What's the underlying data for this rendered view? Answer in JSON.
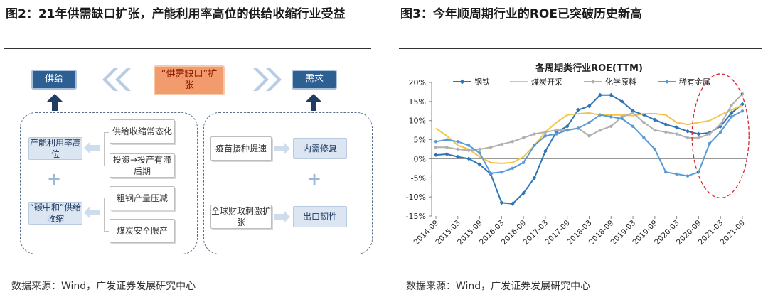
{
  "left_panel": {
    "title": "图2：21年供需缺口扩张，产能利用率高位的供给收缩行业受益",
    "source": "数据来源：Wind，广发证券发展研究中心",
    "diagram": {
      "supply_label": "供给",
      "gap_label": "“供需缺口”扩张",
      "demand_label": "需求",
      "capacity_util": "产能利用率高位",
      "supply_normal": "供给收缩常态化",
      "invest_lag": "投资→投产有滞后期",
      "carbon_neutral": "“碳中和”供给收缩",
      "steel_cut": "粗钢产量压减",
      "coal_limit": "煤炭安全限产",
      "vaccine": "疫苗接种提速",
      "domestic_repair": "内需修复",
      "stimulus": "全球财政刺激扩张",
      "export_resilience": "出口韧性",
      "plus": "+"
    },
    "colors": {
      "dark_box": "#2e5f93",
      "light_box": "#dce6f2",
      "orange_box": "#f29b6d",
      "arrow": "#1f3c63",
      "chevron": "#b8cce4"
    }
  },
  "right_panel": {
    "title": "图3：今年顺周期行业的ROE已突破历史新高",
    "source": "数据来源：Wind，广发证券发展研究中心"
  },
  "chart_data": {
    "type": "line",
    "title": "各周期类行业ROE(TTM)",
    "xlabel": "",
    "ylabel": "",
    "ylim": [
      -15,
      20
    ],
    "yticks": [
      "-15%",
      "-10%",
      "-5%",
      "0%",
      "5%",
      "10%",
      "15%",
      "20%"
    ],
    "xticks": [
      "2014-09",
      "2015-03",
      "2015-09",
      "2016-03",
      "2016-09",
      "2017-03",
      "2017-09",
      "2018-03",
      "2018-09",
      "2019-03",
      "2019-09",
      "2020-03",
      "2020-09",
      "2021-03",
      "2021-09"
    ],
    "x": [
      "2014-09",
      "2014-12",
      "2015-03",
      "2015-06",
      "2015-09",
      "2015-12",
      "2016-03",
      "2016-06",
      "2016-09",
      "2016-12",
      "2017-03",
      "2017-06",
      "2017-09",
      "2017-12",
      "2018-03",
      "2018-06",
      "2018-09",
      "2018-12",
      "2019-03",
      "2019-06",
      "2019-09",
      "2019-12",
      "2020-03",
      "2020-06",
      "2020-09",
      "2020-12",
      "2021-03",
      "2021-06",
      "2021-09"
    ],
    "legend_position": "top",
    "series": [
      {
        "name": "钢铁",
        "color": "#2e75b6",
        "marker": "diamond",
        "values": [
          1,
          1.2,
          0.5,
          0,
          -1.5,
          -4,
          -11.5,
          -11.8,
          -9,
          -5,
          2,
          7,
          8.5,
          12.8,
          13.8,
          16.7,
          16.7,
          15,
          12.5,
          11.5,
          10.2,
          9,
          8.2,
          7.2,
          6.5,
          6.8,
          8.5,
          12,
          14.3
        ]
      },
      {
        "name": "煤炭开采",
        "color": "#f2c44b",
        "marker": "none",
        "values": [
          8,
          6,
          3.5,
          2.5,
          0.5,
          -1,
          -1.2,
          -1,
          0.5,
          3.5,
          7,
          9.5,
          11.5,
          11.8,
          12,
          11.5,
          11.5,
          11.5,
          11.3,
          11.8,
          11.8,
          11.5,
          9.5,
          9,
          9.5,
          10,
          11.5,
          12.8,
          14
        ]
      },
      {
        "name": "化学原料",
        "color": "#b0b0b0",
        "marker": "dot",
        "values": [
          3,
          3,
          2.5,
          2.2,
          2.5,
          3,
          3.8,
          4.5,
          5.5,
          6.5,
          7,
          7.5,
          7.5,
          8,
          6,
          7.5,
          8.5,
          11,
          12,
          9.5,
          7.5,
          7,
          6.5,
          5.5,
          5.5,
          6.5,
          9,
          14,
          17
        ]
      },
      {
        "name": "稀有金属",
        "color": "#5b9bd5",
        "marker": "dot",
        "values": [
          4.5,
          5,
          4.5,
          3.5,
          1.5,
          -3.8,
          -3.5,
          -2.5,
          -1,
          3.5,
          6,
          6.5,
          7.5,
          8,
          9.5,
          11.5,
          11,
          10.5,
          8.5,
          5.5,
          2.5,
          -3.5,
          -4,
          -4.5,
          -3.5,
          4,
          7,
          11,
          12.5
        ]
      }
    ],
    "annotation": "red-dashed-ellipse-around-2020-09-to-2021-09"
  }
}
